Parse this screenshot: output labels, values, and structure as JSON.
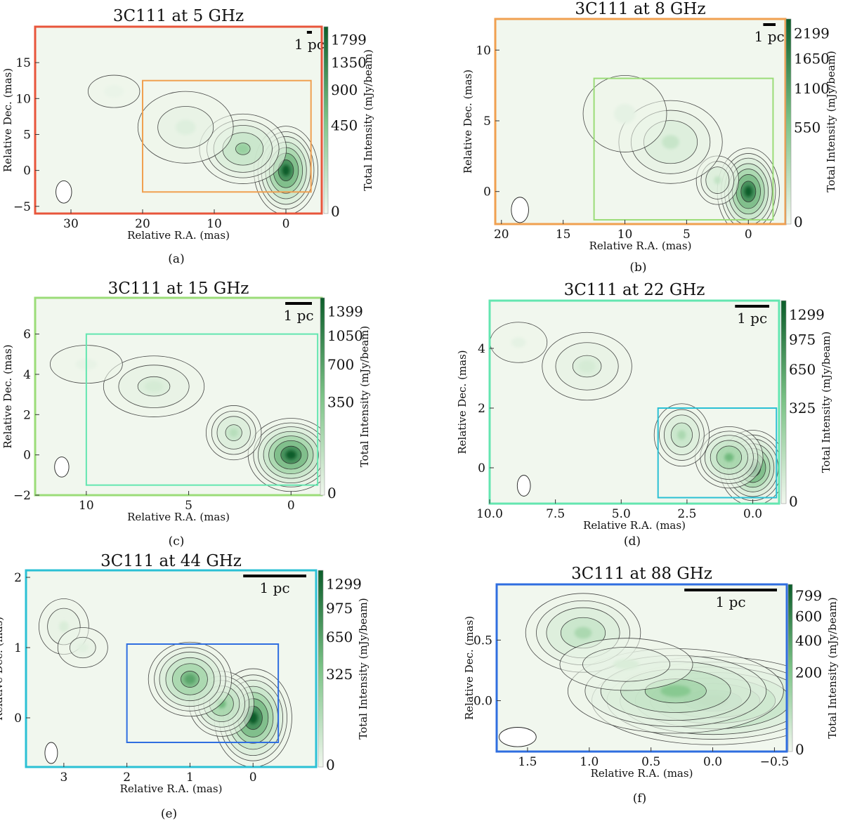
{
  "figure": {
    "ylabel": "Relative Dec. (mas)",
    "xlabel": "Relative R.A. (mas)",
    "cbar_label": "Total Intensity (mJy/beam)",
    "scale_label": "1 pc"
  },
  "colors": {
    "cmap_light": "#f1f7ee",
    "cmap_dark": "#0b5d2a",
    "contour": "#2a2a2a"
  },
  "chart_data": [
    {
      "type": "heatmap",
      "caption": "(a)",
      "title": "3C111 at 5 GHz",
      "frame_color": "#e8553b",
      "box_color": "#f0a050",
      "xlim": [
        35,
        -5
      ],
      "ylim": [
        -6,
        20
      ],
      "xticks": [
        "30",
        "20",
        "10",
        "0"
      ],
      "xtick_values": [
        30,
        20,
        10,
        0
      ],
      "yticks": [
        "−5",
        "0",
        "5",
        "10",
        "15"
      ],
      "ytick_values": [
        -5,
        0,
        5,
        10,
        15
      ],
      "cbar_ticks": [
        "1799",
        "1350",
        "900",
        "450",
        "0"
      ],
      "cbar_values": [
        1799,
        1350,
        900,
        450,
        0
      ],
      "inner_box": {
        "x": [
          20,
          -3.5
        ],
        "y": [
          -3,
          12.5
        ]
      },
      "scale_bar_mas": 0.7,
      "beam": {
        "x": 31,
        "y": -3,
        "w": 2.2,
        "h": 3.1
      },
      "components": [
        {
          "x": 0,
          "y": 0,
          "sx": 1.6,
          "sy": 2.2,
          "peak": 1.0
        },
        {
          "x": 6,
          "y": 3,
          "sx": 2.5,
          "sy": 2.0,
          "peak": 0.38
        },
        {
          "x": 14,
          "y": 6,
          "sx": 4.0,
          "sy": 3.0,
          "peak": 0.08
        },
        {
          "x": 24,
          "y": 11,
          "sx": 4.0,
          "sy": 2.5,
          "peak": 0.03
        }
      ]
    },
    {
      "type": "heatmap",
      "caption": "(b)",
      "title": "3C111 at 8 GHz",
      "frame_color": "#f0a050",
      "box_color": "#9bdc78",
      "xlim": [
        20.5,
        -3.0
      ],
      "ylim": [
        -2.3,
        12.2
      ],
      "xticks": [
        "20",
        "15",
        "10",
        "5",
        "0"
      ],
      "xtick_values": [
        20,
        15,
        10,
        5,
        0
      ],
      "yticks": [
        "0",
        "5",
        "10"
      ],
      "ytick_values": [
        0,
        5,
        10
      ],
      "cbar_ticks": [
        "2199",
        "1650",
        "1100",
        "550",
        "0"
      ],
      "cbar_values": [
        2199,
        1650,
        1100,
        550,
        0
      ],
      "inner_box": {
        "x": [
          12.5,
          -2.0
        ],
        "y": [
          -2.0,
          8.0
        ]
      },
      "scale_bar_mas": 1.0,
      "beam": {
        "x": 18.5,
        "y": -1.3,
        "w": 1.4,
        "h": 1.8
      },
      "components": [
        {
          "x": 0,
          "y": 0,
          "sx": 0.9,
          "sy": 1.1,
          "peak": 1.0
        },
        {
          "x": 2.5,
          "y": 0.8,
          "sx": 0.8,
          "sy": 0.8,
          "peak": 0.2
        },
        {
          "x": 6.3,
          "y": 3.5,
          "sx": 2.0,
          "sy": 1.4,
          "peak": 0.18
        },
        {
          "x": 10,
          "y": 5.5,
          "sx": 2.5,
          "sy": 2.0,
          "peak": 0.05
        }
      ]
    },
    {
      "type": "heatmap",
      "caption": "(c)",
      "title": "3C111 at 15 GHz",
      "frame_color": "#9bdc78",
      "box_color": "#63e6b0",
      "xlim": [
        12.5,
        -1.5
      ],
      "ylim": [
        -2.0,
        7.8
      ],
      "xticks": [
        "10",
        "5",
        "0"
      ],
      "xtick_values": [
        10,
        5,
        0
      ],
      "yticks": [
        "−2",
        "0",
        "2",
        "4",
        "6"
      ],
      "ytick_values": [
        -2,
        0,
        2,
        4,
        6
      ],
      "cbar_ticks": [
        "1399",
        "1050",
        "700",
        "350",
        "0"
      ],
      "cbar_values": [
        1399,
        1050,
        700,
        350,
        0
      ],
      "inner_box": {
        "x": [
          10.0,
          -1.3
        ],
        "y": [
          -1.5,
          6.0
        ]
      },
      "scale_bar_mas": 1.3,
      "beam": {
        "x": 11.2,
        "y": -0.6,
        "w": 0.7,
        "h": 1.0
      },
      "components": [
        {
          "x": 0,
          "y": 0,
          "sx": 0.75,
          "sy": 0.65,
          "peak": 1.0
        },
        {
          "x": 2.8,
          "y": 1.1,
          "sx": 0.6,
          "sy": 0.6,
          "peak": 0.25
        },
        {
          "x": 6.7,
          "y": 3.4,
          "sx": 1.3,
          "sy": 0.8,
          "peak": 0.12
        },
        {
          "x": 10.0,
          "y": 4.5,
          "sx": 1.5,
          "sy": 0.8,
          "peak": 0.04
        }
      ]
    },
    {
      "type": "heatmap",
      "caption": "(d)",
      "title": "3C111 at 22 GHz",
      "frame_color": "#63e6b0",
      "box_color": "#2bc0d4",
      "xlim": [
        10.0,
        -1.0
      ],
      "ylim": [
        -1.2,
        5.6
      ],
      "xticks": [
        "10.0",
        "7.5",
        "5.0",
        "2.5",
        "0.0"
      ],
      "xtick_values": [
        10.0,
        7.5,
        5.0,
        2.5,
        0.0
      ],
      "yticks": [
        "0",
        "2",
        "4"
      ],
      "ytick_values": [
        0,
        2,
        4
      ],
      "cbar_ticks": [
        "1299",
        "975",
        "650",
        "325",
        "0"
      ],
      "cbar_values": [
        1299,
        975,
        650,
        325,
        0
      ],
      "inner_box": {
        "x": [
          3.6,
          -0.9
        ],
        "y": [
          -1.0,
          2.0
        ]
      },
      "scale_bar_mas": 1.3,
      "beam": {
        "x": 8.7,
        "y": -0.6,
        "w": 0.5,
        "h": 0.7
      },
      "components": [
        {
          "x": 0,
          "y": 0,
          "sx": 0.45,
          "sy": 0.45,
          "peak": 1.0
        },
        {
          "x": 0.9,
          "y": 0.35,
          "sx": 0.5,
          "sy": 0.4,
          "peak": 0.55
        },
        {
          "x": 2.7,
          "y": 1.1,
          "sx": 0.45,
          "sy": 0.45,
          "peak": 0.3
        },
        {
          "x": 6.3,
          "y": 3.4,
          "sx": 0.9,
          "sy": 0.6,
          "peak": 0.12
        },
        {
          "x": 8.9,
          "y": 4.2,
          "sx": 0.8,
          "sy": 0.5,
          "peak": 0.05
        }
      ]
    },
    {
      "type": "heatmap",
      "caption": "(e)",
      "title": "3C111 at 44 GHz",
      "frame_color": "#2bc0d4",
      "box_color": "#2f6ee0",
      "xlim": [
        3.6,
        -1.0
      ],
      "ylim": [
        -0.7,
        2.1
      ],
      "xticks": [
        "3",
        "2",
        "1",
        "0"
      ],
      "xtick_values": [
        3,
        2,
        1,
        0
      ],
      "yticks": [
        "0",
        "1",
        "2"
      ],
      "ytick_values": [
        0,
        1,
        2
      ],
      "cbar_ticks": [
        "1299",
        "975",
        "650",
        "325",
        "0"
      ],
      "cbar_values": [
        1299,
        975,
        650,
        325,
        0
      ],
      "inner_box": {
        "x": [
          2.0,
          -0.4
        ],
        "y": [
          -0.35,
          1.05
        ]
      },
      "scale_bar_mas": 1.0,
      "beam": {
        "x": 3.2,
        "y": -0.5,
        "w": 0.2,
        "h": 0.3
      },
      "components": [
        {
          "x": 0,
          "y": 0,
          "sx": 0.22,
          "sy": 0.25,
          "peak": 1.0
        },
        {
          "x": 0.5,
          "y": 0.2,
          "sx": 0.2,
          "sy": 0.18,
          "peak": 0.55
        },
        {
          "x": 1.0,
          "y": 0.55,
          "sx": 0.25,
          "sy": 0.2,
          "peak": 0.65
        },
        {
          "x": 3.0,
          "y": 1.3,
          "sx": 0.22,
          "sy": 0.22,
          "peak": 0.1
        },
        {
          "x": 2.7,
          "y": 1.0,
          "sx": 0.25,
          "sy": 0.18,
          "peak": 0.07
        }
      ]
    },
    {
      "type": "heatmap",
      "caption": "(f)",
      "title": "3C111 at 88 GHz",
      "frame_color": "#2f6ee0",
      "box_color": "",
      "xlim": [
        1.75,
        -0.6
      ],
      "ylim": [
        -0.42,
        0.96
      ],
      "xticks": [
        "1.5",
        "1.0",
        "0.5",
        "0.0",
        "−0.5"
      ],
      "xtick_values": [
        1.5,
        1.0,
        0.5,
        0.0,
        -0.5
      ],
      "yticks": [
        "0.0",
        "0.5"
      ],
      "ytick_values": [
        0.0,
        0.5
      ],
      "cbar_ticks": [
        "799",
        "600",
        "400",
        "200",
        "0"
      ],
      "cbar_values": [
        799,
        600,
        400,
        200,
        0
      ],
      "inner_box": null,
      "scale_bar_mas": 0.75,
      "beam": {
        "x": 1.58,
        "y": -0.3,
        "w": 0.3,
        "h": 0.16
      },
      "components": [
        {
          "x": 0,
          "y": 0,
          "sx": 0.35,
          "sy": 0.13,
          "peak": 1.0
        },
        {
          "x": 0.3,
          "y": 0.08,
          "sx": 0.35,
          "sy": 0.14,
          "peak": 0.45
        },
        {
          "x": 1.05,
          "y": 0.56,
          "sx": 0.2,
          "sy": 0.14,
          "peak": 0.3
        },
        {
          "x": 0.7,
          "y": 0.3,
          "sx": 0.3,
          "sy": 0.12,
          "peak": 0.1
        }
      ]
    }
  ]
}
